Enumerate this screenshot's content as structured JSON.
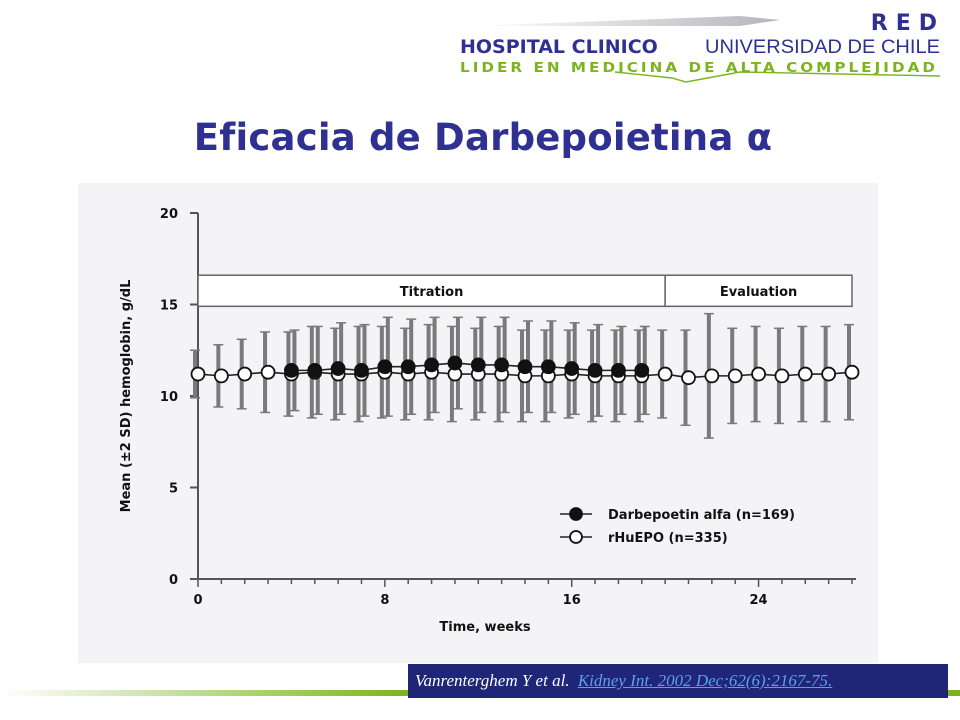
{
  "header": {
    "logo_red": "RED",
    "logo_hospital": "HOSPITAL CLINICO",
    "logo_university": "UNIVERSIDAD DE CHILE",
    "logo_tagline": "LIDER EN MEDICINA DE ALTA COMPLEJIDAD",
    "brand_blue": "#2e3191",
    "brand_green": "#7ab51d"
  },
  "slide": {
    "title": "Eficacia de Darbepoietina α"
  },
  "citation": {
    "authors": "Vanrenterghem Y et al.",
    "reference": "Kidney Int. 2002 Dec;62(6):2167-75."
  },
  "chart_data": {
    "type": "line",
    "xlabel": "Time, weeks",
    "ylabel": "Mean (±2 SD) hemoglobin, g/dL",
    "xlim": [
      0,
      28
    ],
    "ylim": [
      0,
      20
    ],
    "xticks": [
      0,
      8,
      16,
      24
    ],
    "yticks": [
      0,
      5,
      10,
      15,
      20
    ],
    "grid": false,
    "legend_position": "bottom-right",
    "phases": [
      {
        "label": "Titration",
        "start": 0,
        "end": 20
      },
      {
        "label": "Evaluation",
        "start": 20,
        "end": 28
      }
    ],
    "series": [
      {
        "name": "Darbepoetin alfa (n=169)",
        "marker": "filled-circle",
        "x": [
          4,
          5,
          6,
          7,
          8,
          9,
          10,
          11,
          12,
          13,
          14,
          15,
          16,
          17,
          18,
          19
        ],
        "y": [
          11.4,
          11.4,
          11.5,
          11.4,
          11.6,
          11.6,
          11.7,
          11.8,
          11.7,
          11.7,
          11.6,
          11.6,
          11.5,
          11.4,
          11.4,
          11.4
        ],
        "sd2": [
          2.2,
          2.4,
          2.5,
          2.5,
          2.7,
          2.6,
          2.6,
          2.5,
          2.6,
          2.6,
          2.5,
          2.5,
          2.5,
          2.5,
          2.4,
          2.4
        ]
      },
      {
        "name": "rHuEPO (n=335)",
        "marker": "open-circle",
        "x": [
          0,
          1,
          2,
          3,
          4,
          5,
          6,
          7,
          8,
          9,
          10,
          11,
          12,
          13,
          14,
          15,
          16,
          17,
          18,
          19,
          20,
          21,
          22,
          23,
          24,
          25,
          26,
          27,
          28
        ],
        "y": [
          11.2,
          11.1,
          11.2,
          11.3,
          11.2,
          11.3,
          11.2,
          11.2,
          11.3,
          11.2,
          11.3,
          11.2,
          11.2,
          11.2,
          11.1,
          11.1,
          11.2,
          11.1,
          11.1,
          11.1,
          11.2,
          11.0,
          11.1,
          11.1,
          11.2,
          11.1,
          11.2,
          11.2,
          11.3
        ],
        "sd2": [
          1.3,
          1.7,
          1.9,
          2.2,
          2.3,
          2.5,
          2.5,
          2.6,
          2.5,
          2.5,
          2.6,
          2.6,
          2.5,
          2.6,
          2.5,
          2.5,
          2.4,
          2.5,
          2.5,
          2.5,
          2.4,
          2.6,
          3.4,
          2.6,
          2.6,
          2.6,
          2.6,
          2.6,
          2.6
        ]
      }
    ]
  }
}
